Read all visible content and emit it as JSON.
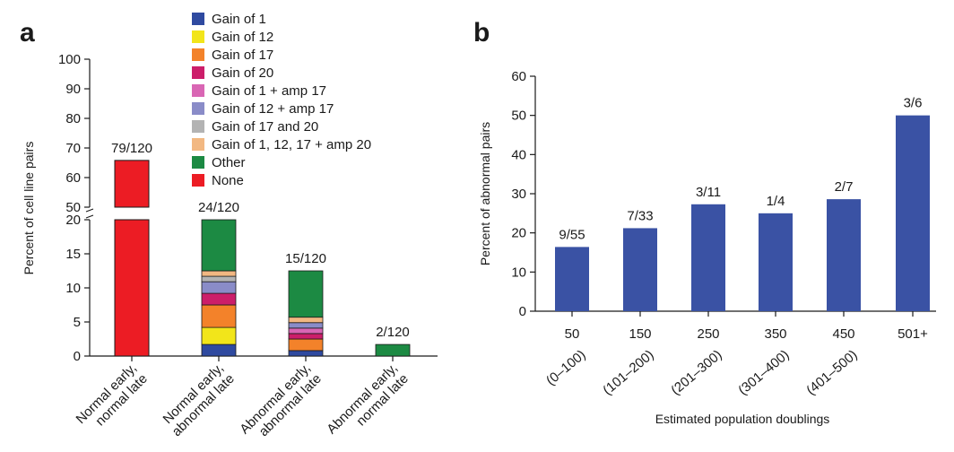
{
  "chart_data": [
    {
      "panel": "a",
      "type": "bar",
      "stacked": true,
      "broken_axis": true,
      "ylabel": "Percent of cell line pairs",
      "yticks_upper": [
        50,
        60,
        70,
        80,
        90,
        100
      ],
      "yticks_lower": [
        0,
        5,
        10,
        15,
        20
      ],
      "categories": [
        [
          "Normal early,",
          "normal late"
        ],
        [
          "Normal early,",
          "abnormal late"
        ],
        [
          "Abnormal early,",
          "abnormal late"
        ],
        [
          "Abnormal early,",
          "normal late"
        ]
      ],
      "totals": [
        65.8,
        20,
        12.5,
        1.7
      ],
      "bar_labels": [
        "79/120",
        "24/120",
        "15/120",
        "2/120"
      ],
      "series": [
        {
          "name": "Gain of 1",
          "color": "#2f4aa0",
          "values": [
            0,
            1.7,
            0.8,
            0
          ]
        },
        {
          "name": "Gain of 12",
          "color": "#f2e51a",
          "values": [
            0,
            2.5,
            0,
            0
          ]
        },
        {
          "name": "Gain of 17",
          "color": "#f3822a",
          "values": [
            0,
            3.3,
            1.7,
            0
          ]
        },
        {
          "name": "Gain of 20",
          "color": "#cc1e6a",
          "values": [
            0,
            1.7,
            0.8,
            0
          ]
        },
        {
          "name": "Gain of 1 + amp 17",
          "color": "#d966b4",
          "values": [
            0,
            0,
            0.8,
            0
          ]
        },
        {
          "name": "Gain of 12 + amp 17",
          "color": "#8a8cc8",
          "values": [
            0,
            1.7,
            0.8,
            0
          ]
        },
        {
          "name": "Gain of 17 and 20",
          "color": "#b3b3b3",
          "values": [
            0,
            0.8,
            0,
            0
          ]
        },
        {
          "name": "Gain of 1, 12, 17 + amp 20",
          "color": "#f2b882",
          "values": [
            0,
            0.8,
            0.8,
            0
          ]
        },
        {
          "name": "Other",
          "color": "#1c8a43",
          "values": [
            0,
            7.5,
            6.8,
            1.7
          ]
        },
        {
          "name": "None",
          "color": "#ec1c24",
          "values": [
            65.8,
            0,
            0,
            0
          ]
        }
      ]
    },
    {
      "panel": "b",
      "type": "bar",
      "ylabel": "Percent of abnormal pairs",
      "xlabel": "Estimated population doublings",
      "ylim": [
        0,
        60
      ],
      "yticks": [
        0,
        10,
        20,
        30,
        40,
        50,
        60
      ],
      "color": "#3a52a4",
      "categories": [
        "50",
        "150",
        "250",
        "350",
        "450",
        "501+"
      ],
      "ranges": [
        "(0–100)",
        "(101–200)",
        "(201–300)",
        "(301–400)",
        "(401–500)",
        ""
      ],
      "values": [
        16.4,
        21.2,
        27.3,
        25,
        28.6,
        50
      ],
      "bar_labels": [
        "9/55",
        "7/33",
        "3/11",
        "1/4",
        "2/7",
        "3/6"
      ]
    }
  ]
}
